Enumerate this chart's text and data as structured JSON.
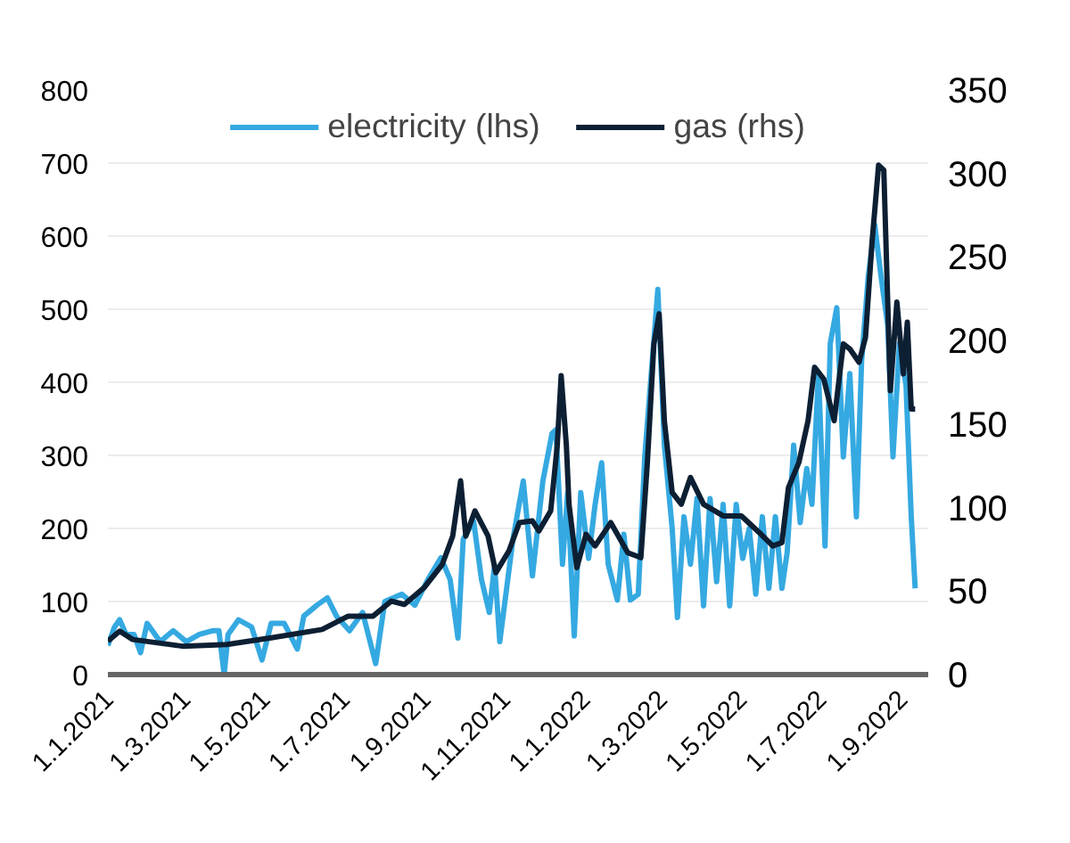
{
  "chart_data": {
    "type": "line",
    "xlim": [
      "2021-01-01",
      "2022-09-21"
    ],
    "xticks": [
      {
        "value": "2021-01-01",
        "label": "1.1.2021"
      },
      {
        "value": "2021-03-01",
        "label": "1.3.2021"
      },
      {
        "value": "2021-05-01",
        "label": "1.5.2021"
      },
      {
        "value": "2021-07-01",
        "label": "1.7.2021"
      },
      {
        "value": "2021-09-01",
        "label": "1.9.2021"
      },
      {
        "value": "2021-11-01",
        "label": "1.11.2021"
      },
      {
        "value": "2022-01-01",
        "label": "1.1.2022"
      },
      {
        "value": "2022-03-01",
        "label": "1.3.2022"
      },
      {
        "value": "2022-05-01",
        "label": "1.5.2022"
      },
      {
        "value": "2022-07-01",
        "label": "1.7.2022"
      },
      {
        "value": "2022-09-01",
        "label": "1.9.2022"
      }
    ],
    "ylim": [
      0,
      800
    ],
    "yticks": [
      0,
      100,
      200,
      300,
      400,
      500,
      600,
      700,
      800
    ],
    "y2lim": [
      0,
      350
    ],
    "y2ticks": [
      0,
      50,
      100,
      150,
      200,
      250,
      300,
      350
    ],
    "grid": "y",
    "legend": "top",
    "series": [
      {
        "name": "electricity (lhs)",
        "color": "#35a9e1",
        "x": [
          "2021-01-01",
          "2021-01-06",
          "2021-01-10",
          "2021-01-15",
          "2021-01-21",
          "2021-01-26",
          "2021-01-31",
          "2021-02-10",
          "2021-02-20",
          "2021-03-02",
          "2021-03-12",
          "2021-03-22",
          "2021-03-27",
          "2021-03-31",
          "2021-04-03",
          "2021-04-11",
          "2021-04-21",
          "2021-04-29",
          "2021-05-06",
          "2021-05-16",
          "2021-05-26",
          "2021-05-31",
          "2021-06-10",
          "2021-06-18",
          "2021-06-25",
          "2021-07-05",
          "2021-07-15",
          "2021-07-25",
          "2021-08-01",
          "2021-08-14",
          "2021-08-24",
          "2021-09-03",
          "2021-09-13",
          "2021-09-20",
          "2021-09-26",
          "2021-09-30",
          "2021-10-08",
          "2021-10-14",
          "2021-10-20",
          "2021-10-24",
          "2021-10-28",
          "2021-11-07",
          "2021-11-15",
          "2021-11-22",
          "2021-11-30",
          "2021-12-07",
          "2021-12-10",
          "2021-12-15",
          "2021-12-19",
          "2021-12-24",
          "2021-12-29",
          "2022-01-04",
          "2022-01-09",
          "2022-01-14",
          "2022-01-19",
          "2022-01-26",
          "2022-01-31",
          "2022-02-05",
          "2022-02-11",
          "2022-02-16",
          "2022-02-21",
          "2022-02-26",
          "2022-03-03",
          "2022-03-09",
          "2022-03-13",
          "2022-03-18",
          "2022-03-23",
          "2022-03-28",
          "2022-04-02",
          "2022-04-07",
          "2022-04-12",
          "2022-04-17",
          "2022-04-22",
          "2022-04-27",
          "2022-05-02",
          "2022-05-07",
          "2022-05-12",
          "2022-05-17",
          "2022-05-22",
          "2022-05-27",
          "2022-06-01",
          "2022-06-05",
          "2022-06-10",
          "2022-06-15",
          "2022-06-20",
          "2022-06-24",
          "2022-06-29",
          "2022-07-04",
          "2022-07-08",
          "2022-07-13",
          "2022-07-18",
          "2022-07-23",
          "2022-07-28",
          "2022-08-01",
          "2022-08-06",
          "2022-08-11",
          "2022-08-16",
          "2022-08-21",
          "2022-08-25",
          "2022-08-30",
          "2022-09-04",
          "2022-09-08",
          "2022-09-11"
        ],
        "values": [
          40,
          65,
          75,
          55,
          55,
          30,
          70,
          45,
          60,
          45,
          55,
          60,
          60,
          0,
          55,
          75,
          65,
          20,
          70,
          70,
          35,
          80,
          95,
          105,
          80,
          60,
          85,
          15,
          100,
          110,
          95,
          130,
          160,
          130,
          50,
          185,
          210,
          130,
          85,
          150,
          45,
          184,
          265,
          135,
          265,
          330,
          335,
          151,
          249,
          53,
          249,
          159,
          233,
          290,
          151,
          102,
          192,
          102,
          110,
          298,
          412,
          527,
          314,
          200,
          78,
          216,
          151,
          241,
          94,
          241,
          127,
          233,
          94,
          233,
          159,
          200,
          110,
          216,
          118,
          216,
          118,
          167,
          314,
          208,
          282,
          233,
          412,
          176,
          453,
          502,
          298,
          412,
          216,
          429,
          543,
          616,
          543,
          478,
          298,
          453,
          396,
          216,
          118
        ]
      },
      {
        "name": "gas (rhs)",
        "color": "#0d1f33",
        "axis": "y2",
        "x": [
          "2021-01-01",
          "2021-01-10",
          "2021-01-20",
          "2021-02-27",
          "2021-04-02",
          "2021-05-06",
          "2021-06-14",
          "2021-07-04",
          "2021-07-23",
          "2021-08-06",
          "2021-08-16",
          "2021-08-31",
          "2021-09-14",
          "2021-09-22",
          "2021-09-28",
          "2021-10-02",
          "2021-10-09",
          "2021-10-19",
          "2021-10-25",
          "2021-11-04",
          "2021-11-12",
          "2021-11-22",
          "2021-11-27",
          "2021-12-06",
          "2021-12-11",
          "2021-12-14",
          "2021-12-18",
          "2021-12-20",
          "2021-12-26",
          "2022-01-02",
          "2022-01-09",
          "2022-01-21",
          "2022-02-03",
          "2022-02-13",
          "2022-02-18",
          "2022-02-23",
          "2022-02-27",
          "2022-03-03",
          "2022-03-09",
          "2022-03-16",
          "2022-03-23",
          "2022-04-02",
          "2022-04-17",
          "2022-05-01",
          "2022-05-16",
          "2022-05-25",
          "2022-06-01",
          "2022-06-06",
          "2022-06-14",
          "2022-06-21",
          "2022-06-26",
          "2022-07-03",
          "2022-07-11",
          "2022-07-18",
          "2022-07-23",
          "2022-07-30",
          "2022-08-04",
          "2022-08-09",
          "2022-08-14",
          "2022-08-18",
          "2022-08-23",
          "2022-08-28",
          "2022-09-02",
          "2022-09-05",
          "2022-09-08",
          "2022-09-11"
        ],
        "values": [
          20,
          26,
          21,
          17,
          18,
          22,
          27,
          35,
          35,
          44,
          42,
          52,
          66,
          83,
          116,
          83,
          98,
          83,
          61,
          74,
          91,
          92,
          86,
          98,
          137,
          179,
          137,
          102,
          64,
          84,
          77,
          91,
          73,
          70,
          127,
          198,
          216,
          152,
          109,
          102,
          118,
          102,
          95,
          95,
          84,
          77,
          79,
          112,
          127,
          152,
          184,
          177,
          152,
          198,
          195,
          187,
          202,
          259,
          305,
          302,
          170,
          223,
          180,
          211,
          159,
          159
        ]
      }
    ]
  }
}
